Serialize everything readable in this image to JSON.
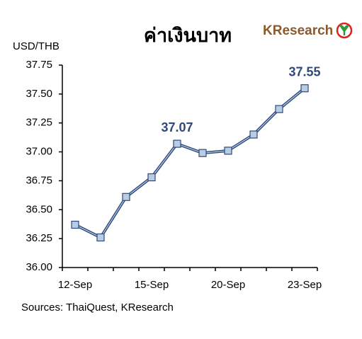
{
  "chart_data": {
    "type": "line",
    "title": "ค่าเงินบาท",
    "y_label": "USD/THB",
    "source": "Sources: ThaiQuest, KResearch",
    "logo": "KResearch",
    "categories": [
      "12-Sep",
      null,
      null,
      "15-Sep",
      null,
      null,
      "20-Sep",
      null,
      null,
      "23-Sep"
    ],
    "values": [
      36.37,
      36.26,
      36.61,
      36.78,
      37.07,
      36.99,
      37.01,
      37.15,
      37.37,
      37.55
    ],
    "value_labels": [
      null,
      null,
      null,
      null,
      "37.07",
      null,
      null,
      null,
      null,
      "37.55"
    ],
    "color": "#2e4a7a",
    "marker_color": "#b8cce4",
    "ylim": [
      36,
      37.75
    ],
    "yticks": [
      {
        "value": 36,
        "label": "36.00"
      },
      36.25,
      {
        "value": 36.5,
        "label": "36.50"
      },
      36.75,
      {
        "value": 37,
        "label": "37.00"
      },
      37.25,
      {
        "value": 37.5,
        "label": "37.50"
      },
      37.75
    ],
    "grid": false
  }
}
